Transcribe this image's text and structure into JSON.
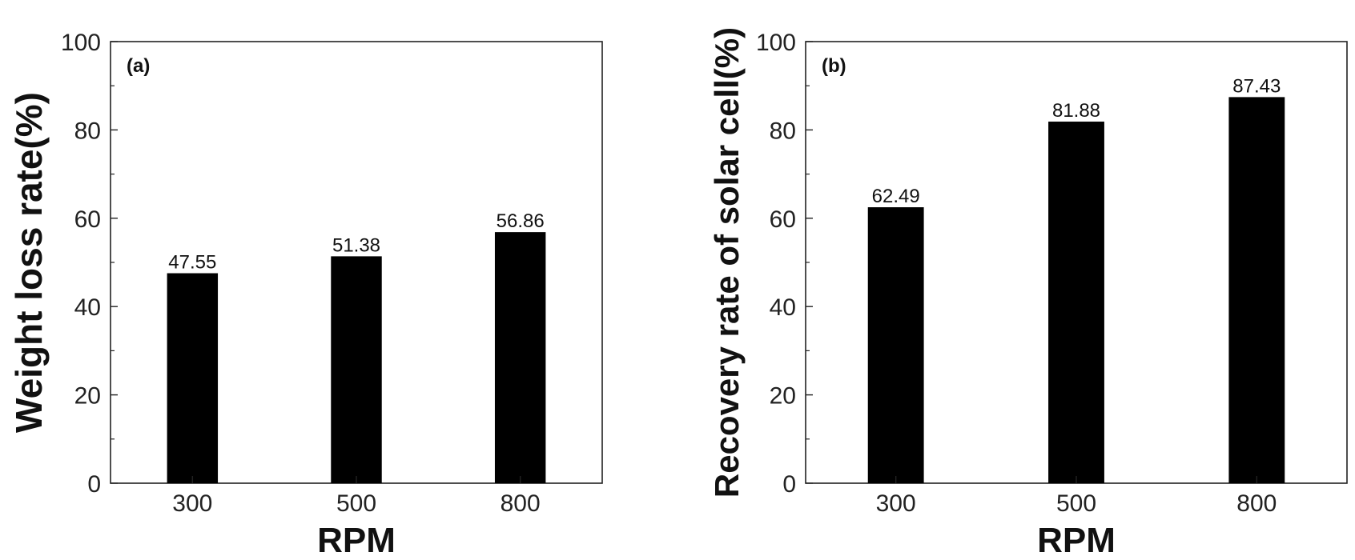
{
  "chart_data": [
    {
      "type": "bar",
      "panel_label": "(a)",
      "categories": [
        "300",
        "500",
        "800"
      ],
      "values": [
        47.55,
        51.38,
        56.86
      ],
      "value_labels": [
        "47.55",
        "51.38",
        "56.86"
      ],
      "title": "",
      "xlabel": "RPM",
      "ylabel": "Weight loss rate(%)",
      "ylim": [
        0,
        100
      ],
      "yticks": [
        "0",
        "20",
        "40",
        "60",
        "80",
        "100"
      ],
      "grid": false,
      "bar_color": "#000000"
    },
    {
      "type": "bar",
      "panel_label": "(b)",
      "categories": [
        "300",
        "500",
        "800"
      ],
      "values": [
        62.49,
        81.88,
        87.43
      ],
      "value_labels": [
        "62.49",
        "81.88",
        "87.43"
      ],
      "title": "",
      "xlabel": "RPM",
      "ylabel": "Recovery rate of solar cell(%)",
      "ylim": [
        0,
        100
      ],
      "yticks": [
        "0",
        "20",
        "40",
        "60",
        "80",
        "100"
      ],
      "grid": false,
      "bar_color": "#000000"
    }
  ]
}
